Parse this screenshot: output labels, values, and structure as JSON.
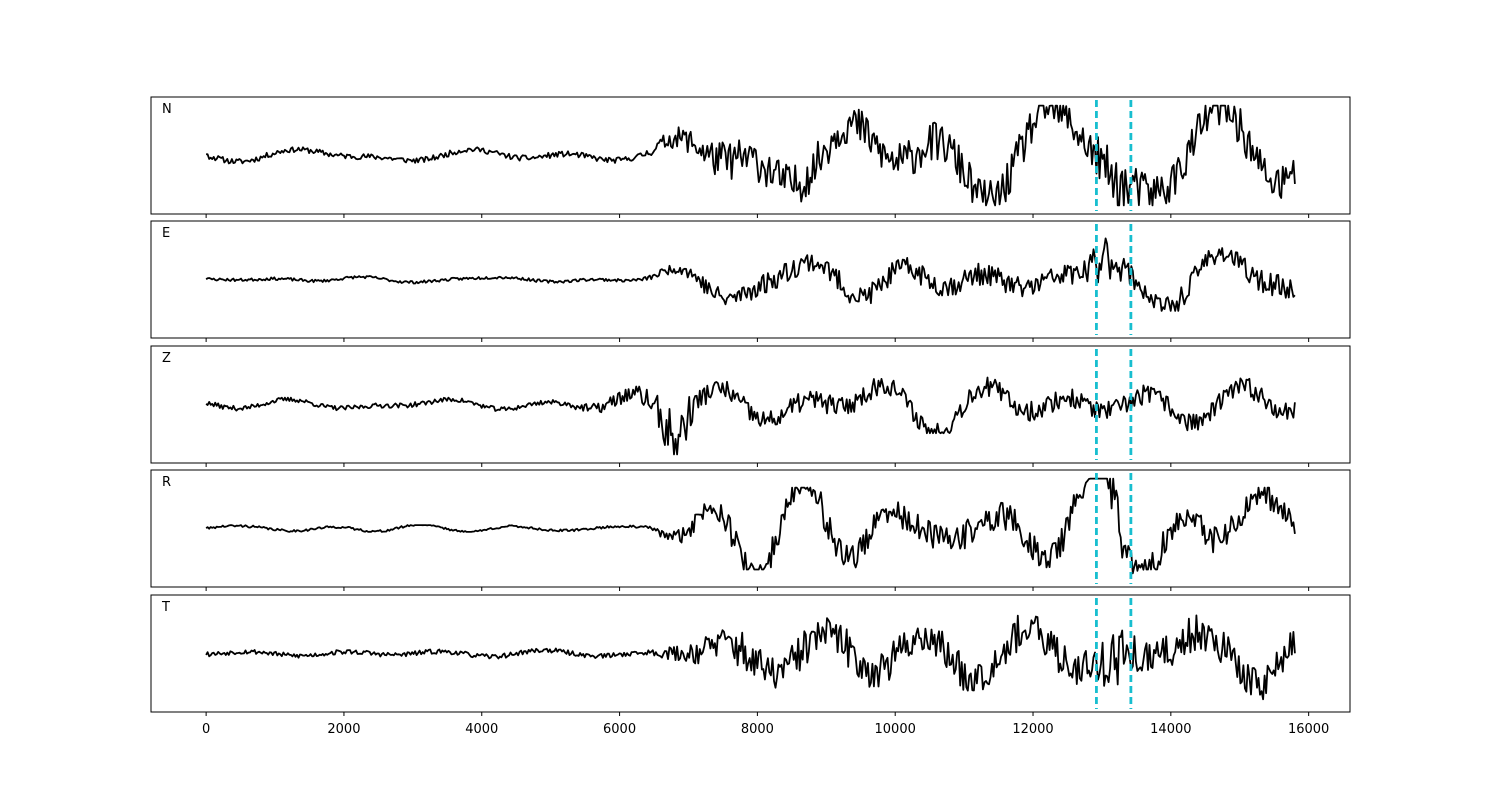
{
  "chart_data": {
    "type": "line",
    "x_ticks": [
      0,
      2000,
      4000,
      6000,
      8000,
      10000,
      12000,
      14000,
      16000
    ],
    "x_tick_labels": [
      "0",
      "2000",
      "4000",
      "6000",
      "8000",
      "10000",
      "12000",
      "14000",
      "16000"
    ],
    "xlim": [
      -800,
      16600
    ],
    "x_range": [
      0,
      15800
    ],
    "markers": [
      12920,
      13420
    ],
    "marker_color": "#17becf",
    "trace_color": "#000000",
    "grid": false,
    "legend": "none",
    "panels": [
      {
        "label": "N",
        "seed": 11,
        "early_amp": 0.12,
        "growth_amp": 0.72,
        "onset": 6300,
        "burst_x": 13200,
        "burst_amp": 0.4
      },
      {
        "label": "E",
        "seed": 23,
        "early_amp": 0.06,
        "growth_amp": 0.4,
        "onset": 6300,
        "burst_x": 13050,
        "burst_amp": 0.55
      },
      {
        "label": "Z",
        "seed": 37,
        "early_amp": 0.1,
        "growth_amp": 0.32,
        "onset": 5200,
        "burst_x": 6800,
        "burst_amp": 0.85
      },
      {
        "label": "R",
        "seed": 41,
        "early_amp": 0.05,
        "growth_amp": 0.55,
        "onset": 6300,
        "burst_x": 13100,
        "burst_amp": 0.7
      },
      {
        "label": "T",
        "seed": 53,
        "early_amp": 0.1,
        "growth_amp": 0.68,
        "onset": 6400,
        "burst_x": 13200,
        "burst_amp": 0.6
      }
    ]
  }
}
